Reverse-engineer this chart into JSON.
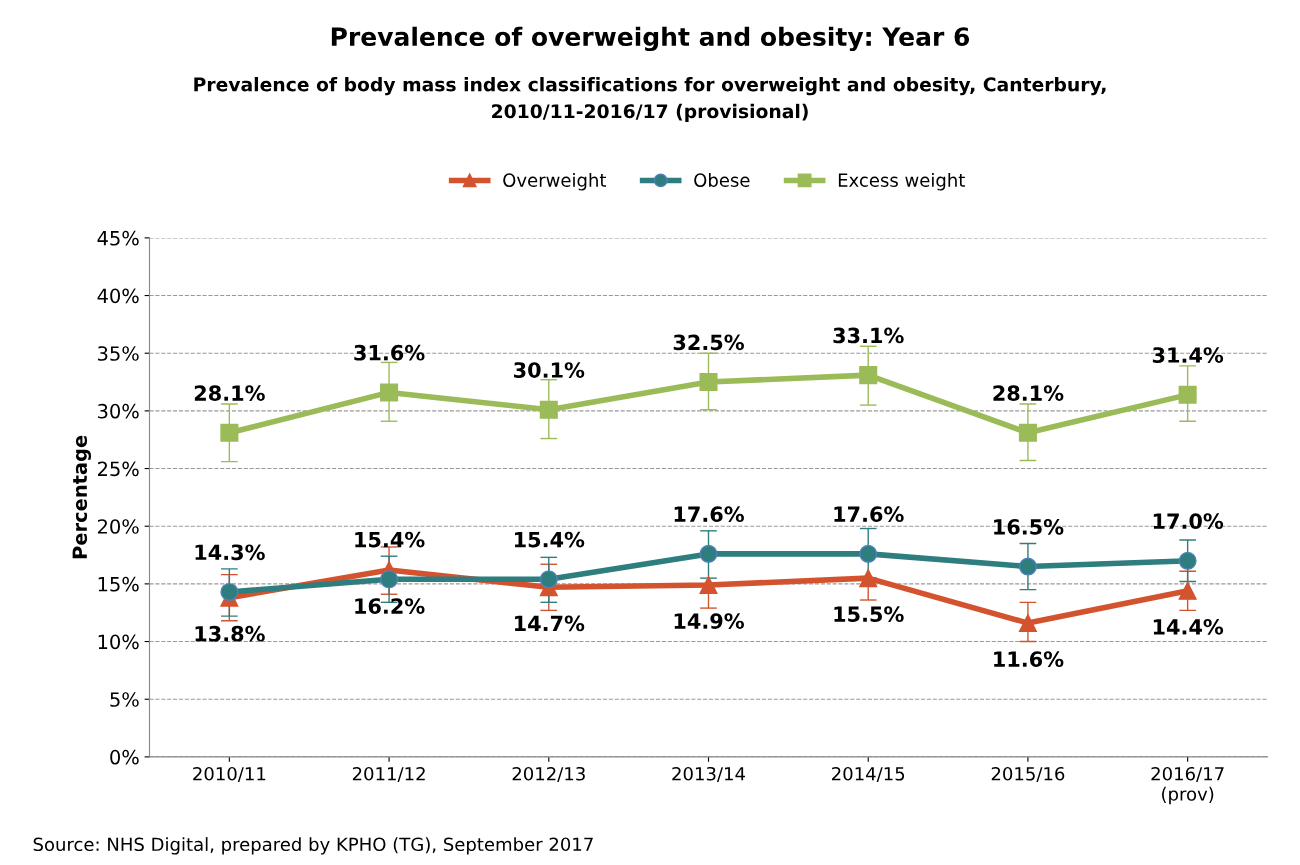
{
  "chart_data": {
    "type": "line",
    "title": "Prevalence of overweight and obesity: Year 6",
    "subtitle": "Prevalence of body mass index classifications for overweight and obesity, Canterbury,\n2010/11-2016/17 (provisional)",
    "ylabel": "Percentage",
    "categories": [
      "2010/11",
      "2011/12",
      "2012/13",
      "2013/14",
      "2014/15",
      "2015/16",
      "2016/17\n(prov)"
    ],
    "series": [
      {
        "name": "Overweight",
        "color": "#d4532f",
        "marker": "triangle",
        "values": [
          13.8,
          16.2,
          14.7,
          14.9,
          15.5,
          11.6,
          14.4
        ],
        "value_labels": [
          "13.8%",
          "16.2%",
          "14.7%",
          "14.9%",
          "15.5%",
          "11.6%",
          "14.4%"
        ],
        "errors": [
          [
            11.8,
            15.8
          ],
          [
            14.1,
            18.2
          ],
          [
            12.7,
            16.7
          ],
          [
            12.9,
            14.9
          ],
          [
            13.6,
            15.5
          ],
          [
            10.0,
            13.4
          ],
          [
            12.7,
            16.1
          ]
        ]
      },
      {
        "name": "Obese",
        "color": "#2e7d7f",
        "marker": "circle",
        "values": [
          14.3,
          15.4,
          15.4,
          17.6,
          17.6,
          16.5,
          17.0
        ],
        "value_labels": [
          "14.3%",
          "15.4%",
          "15.4%",
          "17.6%",
          "17.6%",
          "16.5%",
          "17.0%"
        ],
        "errors": [
          [
            12.2,
            16.3
          ],
          [
            13.4,
            17.4
          ],
          [
            13.4,
            17.3
          ],
          [
            15.5,
            19.6
          ],
          [
            15.5,
            19.8
          ],
          [
            14.5,
            18.5
          ],
          [
            15.2,
            18.8
          ]
        ]
      },
      {
        "name": "Excess weight",
        "color": "#9bbb59",
        "marker": "square",
        "values": [
          28.1,
          31.6,
          30.1,
          32.5,
          33.1,
          28.1,
          31.4
        ],
        "value_labels": [
          "28.1%",
          "31.6%",
          "30.1%",
          "32.5%",
          "33.1%",
          "28.1%",
          "31.4%"
        ],
        "errors": [
          [
            25.6,
            30.6
          ],
          [
            29.1,
            34.2
          ],
          [
            27.6,
            32.7
          ],
          [
            30.1,
            35.0
          ],
          [
            30.5,
            35.6
          ],
          [
            25.7,
            30.6
          ],
          [
            29.1,
            33.9
          ]
        ]
      }
    ],
    "ylim": [
      0,
      45
    ],
    "yticks": [
      {
        "value": 0,
        "label": "0%"
      },
      {
        "value": 5,
        "label": "5%"
      },
      {
        "value": 10,
        "label": "10%"
      },
      {
        "value": 15,
        "label": "15%"
      },
      {
        "value": 20,
        "label": "20%"
      },
      {
        "value": 25,
        "label": "25%"
      },
      {
        "value": 30,
        "label": "30%"
      },
      {
        "value": 35,
        "label": "35%"
      },
      {
        "value": 40,
        "label": "40%"
      },
      {
        "value": 45,
        "label": "45%"
      }
    ],
    "grid": "y",
    "legend": "top",
    "line_style": "solid",
    "annotations": [
      "Source: NHS Digital, prepared by KPHO (TG), September 2017"
    ]
  }
}
